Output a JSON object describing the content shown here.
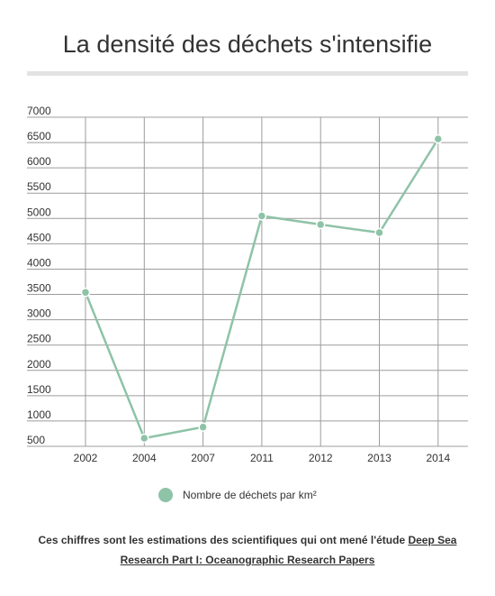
{
  "title": "La densité des déchets s'intensifie",
  "colors": {
    "series": "#8ec3a7",
    "grid": "#9c9c9c",
    "title_rule": "#e3e3e3"
  },
  "chart_data": {
    "type": "line",
    "categories": [
      "2002",
      "2004",
      "2007",
      "2011",
      "2012",
      "2013",
      "2014"
    ],
    "series": [
      {
        "name": "Nombre de déchets par km²",
        "values": [
          3540,
          660,
          880,
          5050,
          4880,
          4720,
          6570
        ]
      }
    ],
    "y_ticks": [
      7000,
      6500,
      6000,
      5500,
      5000,
      4500,
      4000,
      3500,
      3000,
      2500,
      2000,
      1500,
      1000,
      500
    ],
    "ylim": [
      500,
      7000
    ],
    "grid": true,
    "legend_position": "bottom"
  },
  "legend": {
    "label": "Nombre de déchets par km²"
  },
  "footnote": {
    "text": "Ces chiffres sont les estimations des scientifiques qui ont mené l'étude ",
    "link_text": "Deep Sea Research Part I: Oceanographic Research Papers"
  }
}
